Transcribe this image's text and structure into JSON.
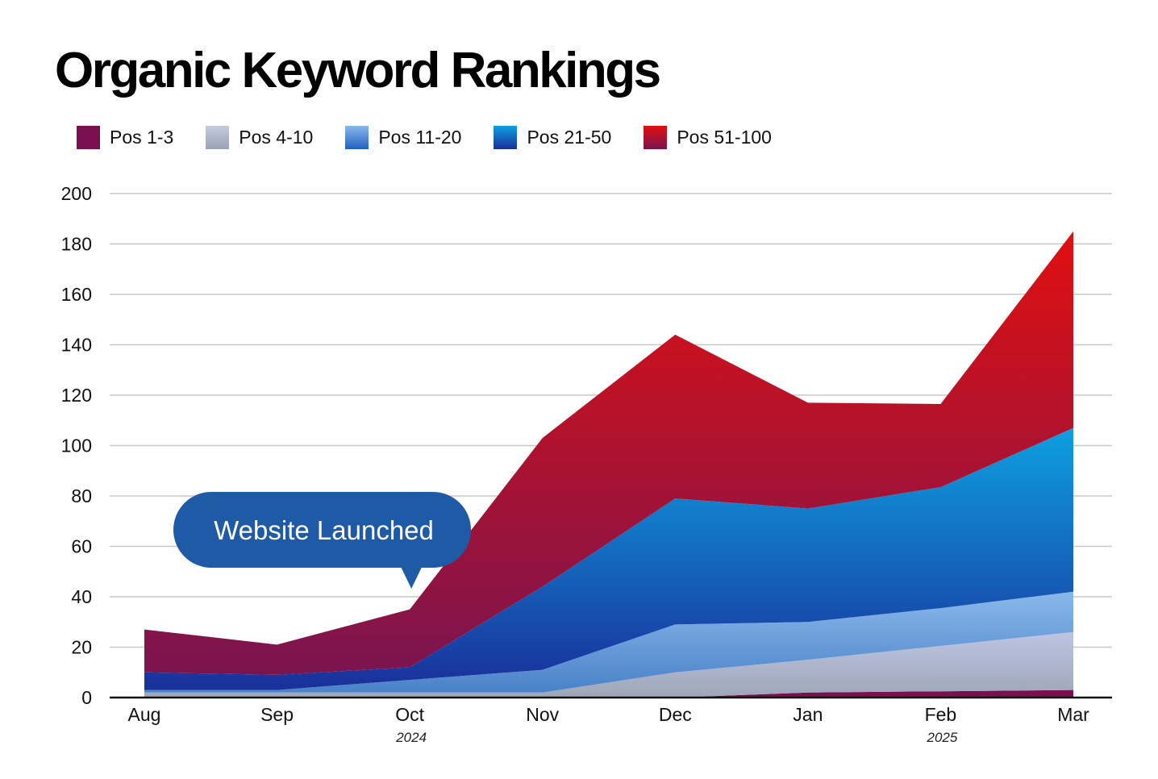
{
  "chart_data": {
    "type": "area",
    "stacked": true,
    "title": "Organic Keyword Rankings",
    "categories": [
      "Aug",
      "Sep",
      "Oct",
      "Nov",
      "Dec",
      "Jan",
      "Feb",
      "Mar"
    ],
    "year_labels": [
      {
        "category": "Oct",
        "text": "2024"
      },
      {
        "category": "Feb",
        "text": "2025"
      }
    ],
    "ylim": [
      0,
      200
    ],
    "yticks": [
      "0",
      "20",
      "40",
      "60",
      "80",
      "100",
      "120",
      "140",
      "160",
      "180",
      "200"
    ],
    "grid": true,
    "legend_position": "top-left",
    "series": [
      {
        "name": "Pos 1-3",
        "values": [
          0,
          0,
          0,
          0,
          0,
          2,
          2.5,
          3
        ],
        "color_top": "#7a1050",
        "color_bottom": "#7a1050"
      },
      {
        "name": "Pos 4-10",
        "values": [
          2,
          2,
          2,
          2,
          10,
          13,
          18,
          23
        ],
        "color_top": "#bdc4e2",
        "color_bottom": "#9ea6b8"
      },
      {
        "name": "Pos 11-20",
        "values": [
          1,
          1,
          5,
          9,
          19,
          15,
          15,
          16
        ],
        "color_top": "#8ab8ea",
        "color_bottom": "#4a82c8"
      },
      {
        "name": "Pos 21-50",
        "values": [
          7,
          6,
          5,
          33,
          50,
          45,
          48,
          65
        ],
        "color_top": "#0ea0e0",
        "color_bottom": "#1a2f9a"
      },
      {
        "name": "Pos 51-100",
        "values": [
          17,
          12,
          23,
          59,
          65,
          42,
          33,
          78
        ],
        "color_top": "#e01010",
        "color_bottom": "#7a1450"
      }
    ],
    "annotations": [
      {
        "text": "Website Launched",
        "category": "Oct"
      }
    ]
  }
}
